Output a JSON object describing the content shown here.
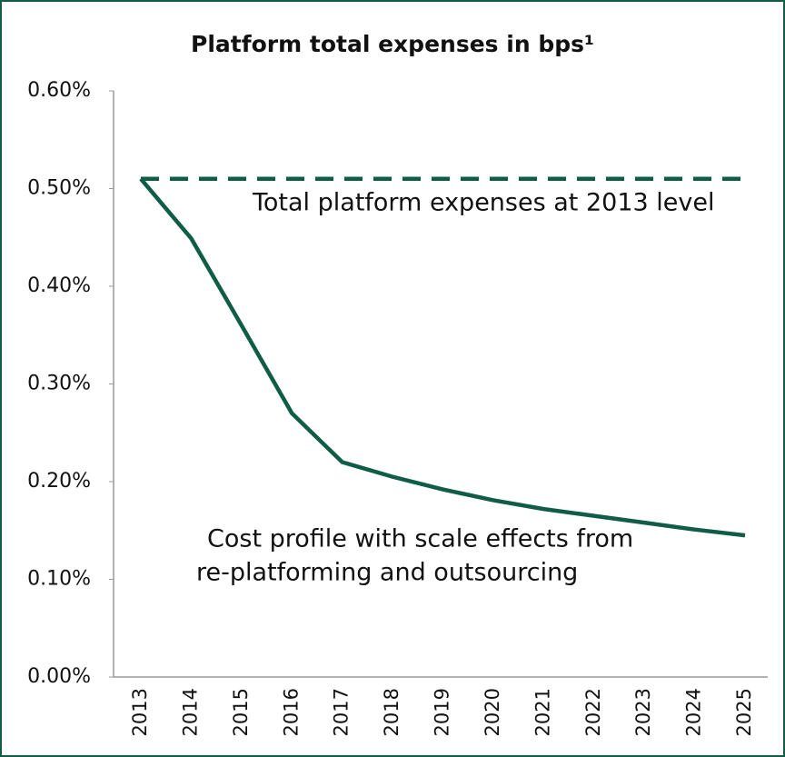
{
  "chart_data": {
    "type": "line",
    "title": "Platform total expenses in bps¹",
    "categories": [
      "2013",
      "2014",
      "2015",
      "2016",
      "2017",
      "2018",
      "2019",
      "2020",
      "2021",
      "2022",
      "2023",
      "2024",
      "2025"
    ],
    "series": [
      {
        "color": "#0f5c47",
        "dashed": true,
        "values": [
          0.51,
          0.51,
          0.51,
          0.51,
          0.51,
          0.51,
          0.51,
          0.51,
          0.51,
          0.51,
          0.51,
          0.51,
          0.51
        ]
      },
      {
        "color": "#0f5c47",
        "dashed": false,
        "values": [
          0.51,
          0.449,
          0.36,
          0.27,
          0.22,
          0.205,
          0.192,
          0.181,
          0.172,
          0.165,
          0.158,
          0.151,
          0.145
        ]
      }
    ],
    "annotations": [
      "Total platform expenses at 2013 level",
      "Cost profile with scale effects from",
      "re-platforming and outsourcing"
    ],
    "ylim": [
      0,
      0.6
    ],
    "yticks": [
      {
        "value": 0,
        "label": "0.00%"
      },
      {
        "value": 0.1,
        "label": "0.10%"
      },
      {
        "value": 0.2,
        "label": "0.20%"
      },
      {
        "value": 0.3,
        "label": "0.30%"
      },
      {
        "value": 0.4,
        "label": "0.40%"
      },
      {
        "value": 0.5,
        "label": "0.50%"
      },
      {
        "value": 0.6,
        "label": "0.60%"
      }
    ],
    "grid": false
  }
}
